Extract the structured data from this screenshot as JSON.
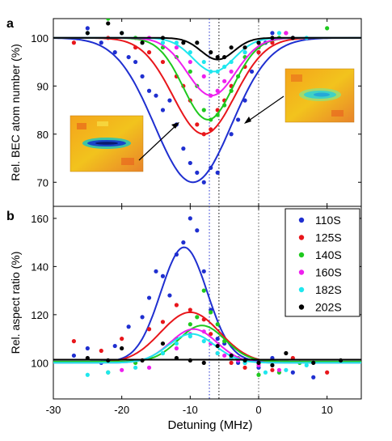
{
  "panel_labels": [
    "a",
    "b"
  ],
  "xlabel": "Detuning (MHz)",
  "xlim": [
    -30,
    15
  ],
  "xticks": [
    -30,
    -20,
    -10,
    0,
    10
  ],
  "colors": {
    "110S": "#1f2fd0",
    "125S": "#e8161b",
    "140S": "#1ec91e",
    "160S": "#ee1fee",
    "182S": "#1fe7ee",
    "202S": "#000000"
  },
  "chart_data": [
    {
      "type": "scatter",
      "panel": "a",
      "ylabel": "Rel. BEC atom number (%)",
      "ylim": [
        65,
        104
      ],
      "yticks": [
        70,
        80,
        90,
        100
      ],
      "vlines": [
        -7.2,
        -5.8,
        0
      ],
      "insets": [
        "absorption-image-left",
        "absorption-image-right"
      ],
      "series": [
        {
          "name": "110S",
          "color": "#1f2fd0",
          "fit": {
            "baseline": 100,
            "amp": -30,
            "center": -9.6,
            "sigma": 5.6
          },
          "points": [
            [
              -25,
              102
            ],
            [
              -23,
              99
            ],
            [
              -21,
              97
            ],
            [
              -19,
              96
            ],
            [
              -18,
              95
            ],
            [
              -17,
              92
            ],
            [
              -16,
              89
            ],
            [
              -15,
              88
            ],
            [
              -14,
              85
            ],
            [
              -13,
              87
            ],
            [
              -12,
              82
            ],
            [
              -11,
              77
            ],
            [
              -10,
              74
            ],
            [
              -9,
              72
            ],
            [
              -8,
              70
            ],
            [
              -7,
              73
            ],
            [
              -6,
              72
            ],
            [
              -4,
              80
            ],
            [
              -3,
              83
            ],
            [
              -2,
              87
            ],
            [
              -1,
              93
            ],
            [
              0,
              97
            ],
            [
              1,
              99
            ],
            [
              2,
              101
            ],
            [
              3,
              100
            ],
            [
              5,
              100
            ]
          ]
        },
        {
          "name": "125S",
          "color": "#e8161b",
          "fit": {
            "baseline": 100,
            "amp": -20,
            "center": -8.0,
            "sigma": 4.5
          },
          "points": [
            [
              -27,
              99
            ],
            [
              -22,
              100
            ],
            [
              -18,
              98
            ],
            [
              -16,
              97
            ],
            [
              -14,
              95
            ],
            [
              -12,
              92
            ],
            [
              -11,
              90
            ],
            [
              -10,
              87
            ],
            [
              -9,
              82
            ],
            [
              -8,
              80
            ],
            [
              -7,
              81
            ],
            [
              -6,
              85
            ],
            [
              -5,
              87
            ],
            [
              -4,
              90
            ],
            [
              -2,
              94
            ],
            [
              0,
              97
            ],
            [
              2,
              99
            ],
            [
              4,
              101
            ]
          ]
        },
        {
          "name": "140S",
          "color": "#1ec91e",
          "fit": {
            "baseline": 100,
            "amp": -17,
            "center": -7.4,
            "sigma": 3.6
          },
          "points": [
            [
              -22,
              104
            ],
            [
              -18,
              100
            ],
            [
              -14,
              98
            ],
            [
              -12,
              96
            ],
            [
              -10,
              93
            ],
            [
              -9,
              90
            ],
            [
              -8,
              85
            ],
            [
              -7,
              83
            ],
            [
              -6,
              84
            ],
            [
              -5,
              86
            ],
            [
              -4,
              89
            ],
            [
              -3,
              92
            ],
            [
              -2,
              96
            ],
            [
              0,
              98
            ],
            [
              3,
              100
            ],
            [
              10,
              102
            ]
          ]
        },
        {
          "name": "160S",
          "color": "#ee1fee",
          "fit": {
            "baseline": 100,
            "amp": -12,
            "center": -6.9,
            "sigma": 3.5
          },
          "points": [
            [
              -16,
              100
            ],
            [
              -12,
              98
            ],
            [
              -10,
              95
            ],
            [
              -8,
              92
            ],
            [
              -7,
              88
            ],
            [
              -6,
              89
            ],
            [
              -5,
              91
            ],
            [
              -4,
              93
            ],
            [
              -2,
              97
            ],
            [
              0,
              99
            ],
            [
              4,
              101
            ]
          ]
        },
        {
          "name": "182S",
          "color": "#1fe7ee",
          "fit": {
            "baseline": 100,
            "amp": -7,
            "center": -6.6,
            "sigma": 3.0
          },
          "points": [
            [
              -25,
              101
            ],
            [
              -20,
              101
            ],
            [
              -14,
              99
            ],
            [
              -12,
              99
            ],
            [
              -10,
              97
            ],
            [
              -8,
              95
            ],
            [
              -7,
              93
            ],
            [
              -6,
              93
            ],
            [
              -5,
              94
            ],
            [
              -4,
              95
            ],
            [
              -2,
              97
            ],
            [
              0,
              99
            ],
            [
              3,
              101
            ],
            [
              7,
              100
            ]
          ]
        },
        {
          "name": "202S",
          "color": "#000000",
          "fit": {
            "baseline": 100,
            "amp": -4.5,
            "center": -6.0,
            "sigma": 2.4
          },
          "points": [
            [
              -25,
              101
            ],
            [
              -22,
              103
            ],
            [
              -20,
              101
            ],
            [
              -17,
              99
            ],
            [
              -14,
              100
            ],
            [
              -11,
              99
            ],
            [
              -9,
              99
            ],
            [
              -7,
              97
            ],
            [
              -6,
              96
            ],
            [
              -5,
              96
            ],
            [
              -4,
              98
            ],
            [
              -2,
              98
            ],
            [
              0,
              99
            ],
            [
              2,
              100
            ],
            [
              5,
              100
            ]
          ]
        }
      ]
    },
    {
      "type": "scatter",
      "panel": "b",
      "ylabel": "Rel. aspect ratio (%)",
      "ylim": [
        85,
        165
      ],
      "yticks": [
        100,
        120,
        140,
        160
      ],
      "vlines": [
        -7.2,
        -5.8,
        0
      ],
      "legend": "top-right",
      "series": [
        {
          "name": "110S",
          "color": "#1f2fd0",
          "fit": {
            "baseline": 100.5,
            "amp": 47.5,
            "center": -10.9,
            "sigma": 3.4
          },
          "points": [
            [
              -27,
              103
            ],
            [
              -25,
              106
            ],
            [
              -23,
              100
            ],
            [
              -21,
              107
            ],
            [
              -19,
              115
            ],
            [
              -17,
              119
            ],
            [
              -16,
              127
            ],
            [
              -15,
              138
            ],
            [
              -14,
              136
            ],
            [
              -13,
              128
            ],
            [
              -12,
              145
            ],
            [
              -11,
              150
            ],
            [
              -10,
              160
            ],
            [
              -9,
              155
            ],
            [
              -8,
              138
            ],
            [
              -7,
              122
            ],
            [
              -6,
              110
            ],
            [
              -5,
              108
            ],
            [
              -3,
              100
            ],
            [
              -2,
              100
            ],
            [
              0,
              98
            ],
            [
              2,
              102
            ],
            [
              5,
              96
            ],
            [
              8,
              94
            ]
          ]
        },
        {
          "name": "125S",
          "color": "#e8161b",
          "fit": {
            "baseline": 100,
            "amp": 21,
            "center": -10.0,
            "sigma": 4.3
          },
          "points": [
            [
              -27,
              109
            ],
            [
              -23,
              105
            ],
            [
              -20,
              110
            ],
            [
              -16,
              114
            ],
            [
              -14,
              117
            ],
            [
              -12,
              124
            ],
            [
              -10,
              122
            ],
            [
              -8,
              118
            ],
            [
              -7,
              112
            ],
            [
              -6,
              104
            ],
            [
              -4,
              100
            ],
            [
              -2,
              98
            ],
            [
              0,
              100
            ],
            [
              2,
              97
            ],
            [
              5,
              102
            ],
            [
              10,
              96
            ]
          ]
        },
        {
          "name": "140S",
          "color": "#1ec91e",
          "fit": {
            "baseline": 100.5,
            "amp": 15,
            "center": -8.3,
            "sigma": 3.4
          },
          "points": [
            [
              -22,
              96
            ],
            [
              -18,
              100
            ],
            [
              -14,
              104
            ],
            [
              -12,
              110
            ],
            [
              -10,
              116
            ],
            [
              -9,
              119
            ],
            [
              -8,
              130
            ],
            [
              -7,
              121
            ],
            [
              -6,
              116
            ],
            [
              -5,
              109
            ],
            [
              -3,
              102
            ],
            [
              0,
              95
            ],
            [
              3,
              96
            ],
            [
              6,
              100
            ]
          ]
        },
        {
          "name": "160S",
          "color": "#ee1fee",
          "fit": {
            "baseline": 100,
            "amp": 14,
            "center": -9.5,
            "sigma": 3.4
          },
          "points": [
            [
              -20,
              97
            ],
            [
              -16,
              98
            ],
            [
              -12,
              106
            ],
            [
              -10,
              112
            ],
            [
              -8,
              113
            ],
            [
              -7,
              108
            ],
            [
              -5,
              103
            ],
            [
              -3,
              101
            ],
            [
              0,
              99
            ],
            [
              3,
              97
            ]
          ]
        },
        {
          "name": "182S",
          "color": "#1fe7ee",
          "fit": {
            "baseline": 100,
            "amp": 12,
            "center": -9.8,
            "sigma": 3.4
          },
          "points": [
            [
              -25,
              95
            ],
            [
              -22,
              96
            ],
            [
              -18,
              98
            ],
            [
              -14,
              104
            ],
            [
              -12,
              108
            ],
            [
              -10,
              111
            ],
            [
              -8,
              109
            ],
            [
              -6,
              104
            ],
            [
              -4,
              102
            ],
            [
              -2,
              100
            ],
            [
              1,
              96
            ],
            [
              4,
              97
            ],
            [
              7,
              99
            ]
          ]
        },
        {
          "name": "202S",
          "color": "#000000",
          "fit": {
            "baseline": 101.3,
            "amp": 0,
            "center": 0,
            "sigma": 1
          },
          "points": [
            [
              -25,
              102
            ],
            [
              -22,
              101
            ],
            [
              -20,
              106
            ],
            [
              -17,
              101
            ],
            [
              -14,
              108
            ],
            [
              -12,
              102
            ],
            [
              -10,
              101
            ],
            [
              -8,
              100
            ],
            [
              -6,
              107
            ],
            [
              -4,
              103
            ],
            [
              -2,
              101
            ],
            [
              0,
              100
            ],
            [
              2,
              99
            ],
            [
              4,
              104
            ],
            [
              8,
              100
            ],
            [
              12,
              101
            ]
          ]
        }
      ]
    }
  ]
}
